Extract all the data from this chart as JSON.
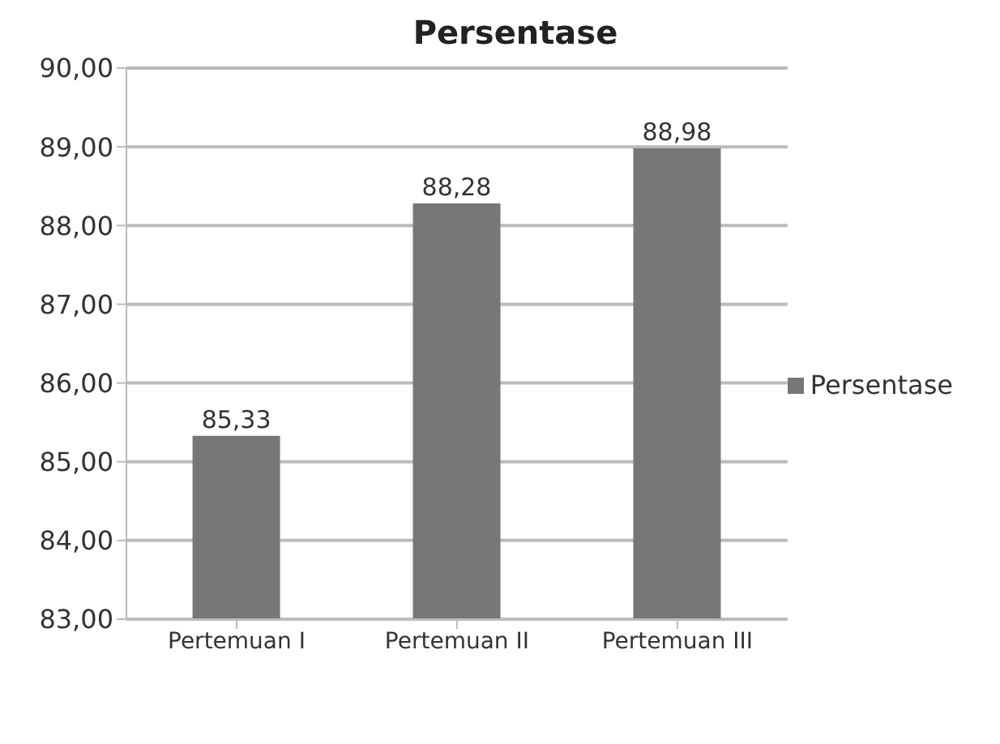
{
  "chart_data": {
    "type": "bar",
    "title": "Persentase",
    "categories": [
      "Pertemuan I",
      "Pertemuan II",
      "Pertemuan III"
    ],
    "series": [
      {
        "name": "Persentase",
        "color": "#777777",
        "values": [
          85.33,
          88.28,
          88.98
        ],
        "value_labels": [
          "85,33",
          "88,28",
          "88,98"
        ]
      }
    ],
    "ylim": [
      83,
      90
    ],
    "yticks": [
      {
        "value": 83,
        "label": "83,00"
      },
      {
        "value": 84,
        "label": "84,00"
      },
      {
        "value": 85,
        "label": "85,00"
      },
      {
        "value": 86,
        "label": "86,00"
      },
      {
        "value": 87,
        "label": "87,00"
      },
      {
        "value": 88,
        "label": "88,00"
      },
      {
        "value": 89,
        "label": "89,00"
      },
      {
        "value": 90,
        "label": "90,00"
      }
    ],
    "grid": "y",
    "legend": "right"
  }
}
